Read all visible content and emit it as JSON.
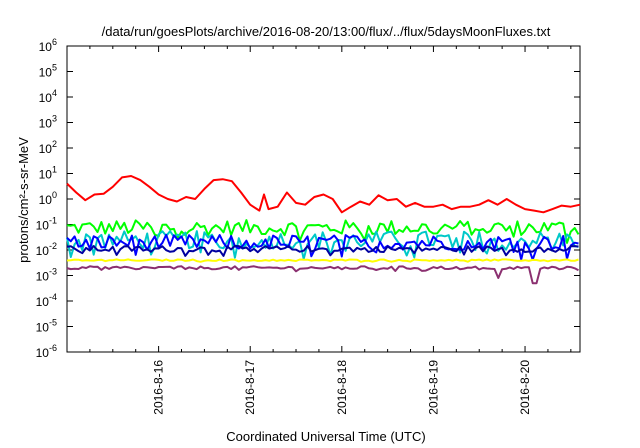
{
  "chart_data": {
    "type": "line",
    "title": "/data/run/goesPlots/archive/2016-08-20/13:00/flux/../flux/5daysMoonFluxes.txt",
    "xlabel": "Coordinated Universal Time (UTC)",
    "ylabel": "protons/cm²-s-sr-MeV",
    "y_scale": "log",
    "ylim": [
      1e-06,
      1000000.0
    ],
    "y_ticks": [
      {
        "value": 1e-06,
        "base": "10",
        "exp": "-6"
      },
      {
        "value": 1e-05,
        "base": "10",
        "exp": "-5"
      },
      {
        "value": 0.0001,
        "base": "10",
        "exp": "-4"
      },
      {
        "value": 0.001,
        "base": "10",
        "exp": "-3"
      },
      {
        "value": 0.01,
        "base": "10",
        "exp": "-2"
      },
      {
        "value": 0.1,
        "base": "10",
        "exp": "-1"
      },
      {
        "value": 1,
        "base": "10",
        "exp": "0"
      },
      {
        "value": 10,
        "base": "10",
        "exp": "1"
      },
      {
        "value": 100,
        "base": "10",
        "exp": "2"
      },
      {
        "value": 1000,
        "base": "10",
        "exp": "3"
      },
      {
        "value": 10000,
        "base": "10",
        "exp": "4"
      },
      {
        "value": 100000,
        "base": "10",
        "exp": "5"
      },
      {
        "value": 1000000,
        "base": "10",
        "exp": "6"
      }
    ],
    "x_axis": {
      "unit": "days, 2016-08",
      "xlim": [
        15.0,
        20.6
      ]
    },
    "x_ticks": [
      {
        "value": 16,
        "label": "2016-8-16"
      },
      {
        "value": 17,
        "label": "2016-8-17"
      },
      {
        "value": 18,
        "label": "2016-8-18"
      },
      {
        "value": 19,
        "label": "2016-8-19"
      },
      {
        "value": 20,
        "label": "2016-8-20"
      }
    ],
    "grid": false,
    "legend": "none",
    "series": [
      {
        "color": "#ff0000",
        "points": [
          [
            15.0,
            4.0
          ],
          [
            15.1,
            1.8
          ],
          [
            15.2,
            0.9
          ],
          [
            15.3,
            1.5
          ],
          [
            15.4,
            1.6
          ],
          [
            15.5,
            3.0
          ],
          [
            15.6,
            7.0
          ],
          [
            15.7,
            8.0
          ],
          [
            15.8,
            5.5
          ],
          [
            15.9,
            3.0
          ],
          [
            16.0,
            1.5
          ],
          [
            16.1,
            1.0
          ],
          [
            16.2,
            0.8
          ],
          [
            16.3,
            1.2
          ],
          [
            16.4,
            1.0
          ],
          [
            16.5,
            2.5
          ],
          [
            16.6,
            5.5
          ],
          [
            16.7,
            6.0
          ],
          [
            16.8,
            5.0
          ],
          [
            16.9,
            1.8
          ],
          [
            17.0,
            0.6
          ],
          [
            17.1,
            0.35
          ],
          [
            17.15,
            1.5
          ],
          [
            17.2,
            0.4
          ],
          [
            17.3,
            0.5
          ],
          [
            17.4,
            1.8
          ],
          [
            17.5,
            0.7
          ],
          [
            17.6,
            0.6
          ],
          [
            17.7,
            1.2
          ],
          [
            17.8,
            1.5
          ],
          [
            17.9,
            1.0
          ],
          [
            18.0,
            0.3
          ],
          [
            18.1,
            0.5
          ],
          [
            18.2,
            0.8
          ],
          [
            18.3,
            0.6
          ],
          [
            18.4,
            1.4
          ],
          [
            18.5,
            0.9
          ],
          [
            18.6,
            1.0
          ],
          [
            18.7,
            0.5
          ],
          [
            18.8,
            0.7
          ],
          [
            18.9,
            0.5
          ],
          [
            19.0,
            0.5
          ],
          [
            19.1,
            0.6
          ],
          [
            19.2,
            0.4
          ],
          [
            19.3,
            0.5
          ],
          [
            19.4,
            0.5
          ],
          [
            19.5,
            0.6
          ],
          [
            19.6,
            0.9
          ],
          [
            19.7,
            0.6
          ],
          [
            19.8,
            1.0
          ],
          [
            19.9,
            0.6
          ],
          [
            20.0,
            0.4
          ],
          [
            20.1,
            0.35
          ],
          [
            20.2,
            0.3
          ],
          [
            20.3,
            0.4
          ],
          [
            20.4,
            0.55
          ],
          [
            20.5,
            0.5
          ],
          [
            20.6,
            0.6
          ]
        ]
      },
      {
        "color": "#00ff00",
        "level": 0.075,
        "amplitude": 0.3,
        "points_per_day": 24
      },
      {
        "color": "#00c8c8",
        "level": 0.025,
        "amplitude": 0.35,
        "points_per_day": 24
      },
      {
        "color": "#0000ff",
        "level": 0.02,
        "amplitude": 0.3,
        "points_per_day": 24
      },
      {
        "color": "#0000a0",
        "level": 0.011,
        "amplitude": 0.12,
        "points_per_day": 24
      },
      {
        "color": "#ffff00",
        "level": 0.004,
        "amplitude": 0.03,
        "points_per_day": 24
      },
      {
        "color": "#8b3070",
        "level": 0.002,
        "amplitude": 0.06,
        "points_per_day": 24,
        "dips": [
          [
            19.72,
            0.0008
          ],
          [
            20.1,
            0.0005
          ]
        ]
      }
    ]
  }
}
